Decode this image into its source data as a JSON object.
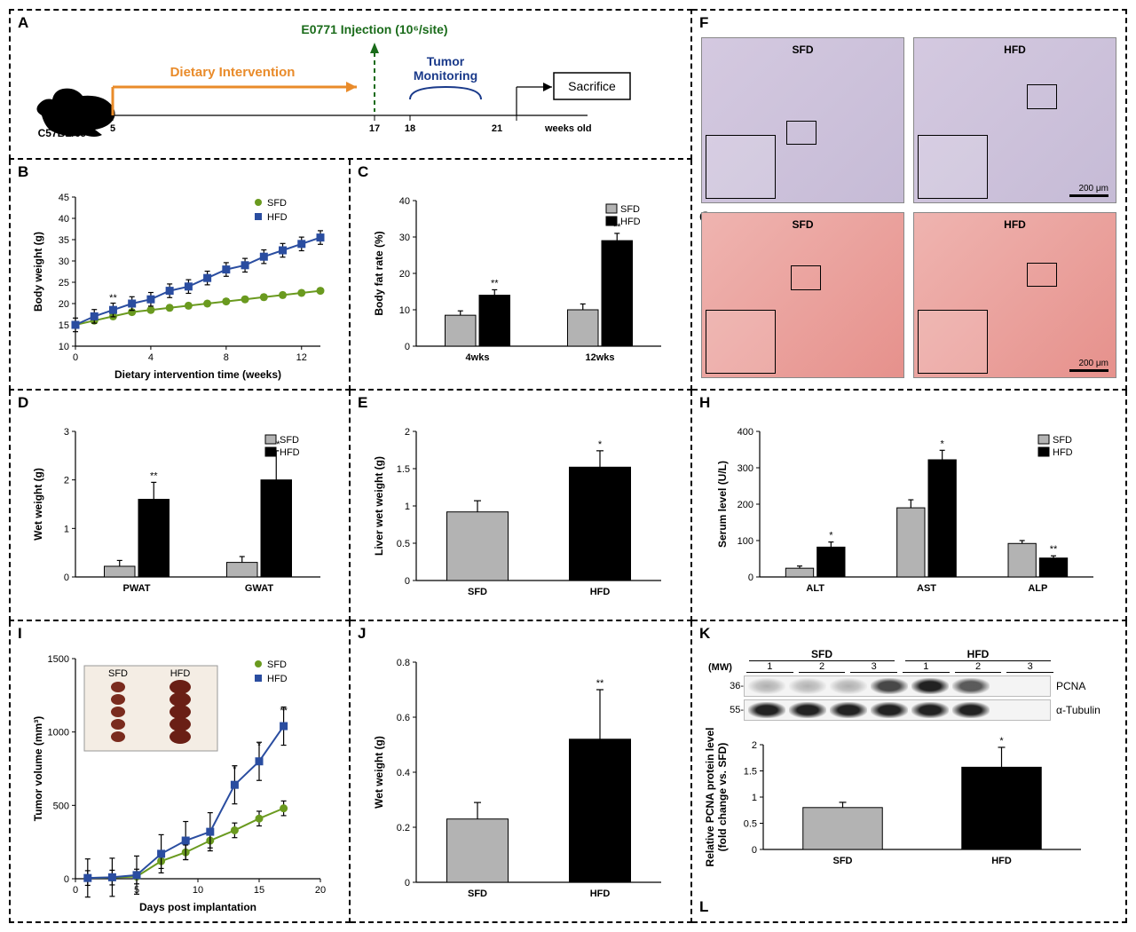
{
  "colors": {
    "sfd_line": "#6a9a1f",
    "hfd_line": "#2a4da0",
    "sfd_bar": "#b3b3b3",
    "hfd_bar": "#000000",
    "diet_arrow": "#e98b2a",
    "injection": "#1a6b1a",
    "monitor": "#1a3a8a"
  },
  "panelA": {
    "label": "A",
    "mouse_label": "C57BL/6J",
    "diet_label": "Dietary Intervention",
    "injection_label": "E0771 Injection (10⁶/site)",
    "monitor_label": "Tumor\nMonitoring",
    "sacrifice_label": "Sacrifice",
    "weeks": [
      5,
      17,
      18,
      21
    ],
    "weeks_suffix": "weeks old"
  },
  "panelB": {
    "label": "B",
    "type": "line",
    "xlabel": "Dietary intervention time (weeks)",
    "ylabel": "Body weight (g)",
    "xlim": [
      0,
      13
    ],
    "ylim": [
      10,
      45
    ],
    "xticks": [
      0,
      4,
      8,
      12
    ],
    "yticks": [
      10,
      15,
      20,
      25,
      30,
      35,
      40,
      45
    ],
    "sfd": [
      15,
      16,
      17,
      18,
      18.5,
      19,
      19.5,
      20,
      20.5,
      21,
      21.5,
      22,
      22.5,
      23
    ],
    "hfd": [
      15,
      17,
      18.5,
      20,
      21,
      23,
      24,
      26,
      28,
      29,
      31,
      32.5,
      34,
      35.5
    ],
    "err_sfd": 0.6,
    "err_hfd": 1.6,
    "sig": {
      "x": 2,
      "txt": "**"
    },
    "legend": [
      "SFD",
      "HFD"
    ]
  },
  "panelC": {
    "label": "C",
    "type": "grouped-bar",
    "xlabel": "",
    "ylabel": "Body fat rate (%)",
    "ylim": [
      0,
      40
    ],
    "yticks": [
      0,
      10,
      20,
      30,
      40
    ],
    "groups": [
      "4wks",
      "12wks"
    ],
    "sfd": [
      8.5,
      10
    ],
    "hfd": [
      14,
      29
    ],
    "err_sfd": [
      1.2,
      1.6
    ],
    "err_hfd": [
      1.5,
      2.0
    ],
    "sig": [
      "**",
      "**"
    ],
    "legend": [
      "SFD",
      "HFD"
    ]
  },
  "panelD": {
    "label": "D",
    "type": "grouped-bar",
    "ylabel": "Wet weight (g)",
    "ylim": [
      0,
      3
    ],
    "yticks": [
      0,
      1,
      2,
      3
    ],
    "groups": [
      "PWAT",
      "GWAT"
    ],
    "sfd": [
      0.22,
      0.3
    ],
    "hfd": [
      1.6,
      2.0
    ],
    "err_sfd": [
      0.12,
      0.12
    ],
    "err_hfd": [
      0.35,
      0.6
    ],
    "sig": [
      "**",
      "**"
    ],
    "legend": [
      "SFD",
      "HFD"
    ]
  },
  "panelE": {
    "label": "E",
    "type": "bar",
    "ylabel": "Liver wet weight (g)",
    "ylim": [
      0,
      2.0
    ],
    "yticks": [
      0.0,
      0.5,
      1.0,
      1.5,
      2.0
    ],
    "cats": [
      "SFD",
      "HFD"
    ],
    "vals": [
      0.92,
      1.52
    ],
    "errs": [
      0.15,
      0.22
    ],
    "sig": [
      "",
      "*"
    ],
    "bar_colors": [
      "#b3b3b3",
      "#000000"
    ]
  },
  "panelF": {
    "label": "F",
    "rows": [
      {
        "stain": "purple",
        "sfd_label": "SFD",
        "hfd_label": "HFD",
        "scale": "200 μm"
      },
      {
        "stain": "red",
        "sfd_label": "SFD",
        "hfd_label": "HFD",
        "scale": "200 μm",
        "sublabel": "G"
      }
    ]
  },
  "panelH": {
    "label": "H",
    "type": "grouped-bar",
    "ylabel": "Serum level (U/L)",
    "ylim": [
      0,
      400
    ],
    "yticks": [
      0,
      100,
      200,
      300,
      400
    ],
    "groups": [
      "ALT",
      "AST",
      "ALP"
    ],
    "sfd": [
      24,
      190,
      92
    ],
    "hfd": [
      82,
      322,
      52
    ],
    "err_sfd": [
      6,
      22,
      8
    ],
    "err_hfd": [
      14,
      26,
      6
    ],
    "sig": [
      "*",
      "*",
      "**"
    ],
    "legend": [
      "SFD",
      "HFD"
    ]
  },
  "panelI": {
    "label": "I",
    "type": "line",
    "xlabel": "Days post implantation",
    "ylabel": "Tumor volume (mm³)",
    "xlim": [
      0,
      20
    ],
    "ylim": [
      0,
      1500
    ],
    "xticks": [
      0,
      5,
      10,
      15,
      20
    ],
    "yticks": [
      0,
      500,
      1000,
      1500
    ],
    "days": [
      1,
      3,
      5,
      7,
      9,
      11,
      13,
      15,
      17
    ],
    "sfd": [
      5,
      8,
      15,
      120,
      180,
      260,
      330,
      410,
      480
    ],
    "hfd": [
      5,
      10,
      25,
      170,
      260,
      320,
      640,
      800,
      1040
    ],
    "err_sfd": 50,
    "err_hfd": 130,
    "sig": [
      {
        "x": 13,
        "t": "*"
      },
      {
        "x": 15,
        "t": "*"
      },
      {
        "x": 17,
        "t": "**"
      }
    ],
    "legend": [
      "SFD",
      "HFD"
    ],
    "inset_labels": [
      "SFD",
      "HFD"
    ]
  },
  "panelJ": {
    "label": "J",
    "type": "bar",
    "ylabel": "Wet weight (g)",
    "ylim": [
      0,
      0.8
    ],
    "yticks": [
      0.0,
      0.2,
      0.4,
      0.6,
      0.8
    ],
    "cats": [
      "SFD",
      "HFD"
    ],
    "vals": [
      0.23,
      0.52
    ],
    "errs": [
      0.06,
      0.18
    ],
    "sig": [
      "",
      "**"
    ],
    "bar_colors": [
      "#b3b3b3",
      "#000000"
    ]
  },
  "panelK": {
    "label": "K",
    "header_groups": [
      "SFD",
      "HFD"
    ],
    "lanes": [
      "1",
      "2",
      "3",
      "1",
      "2",
      "3"
    ],
    "mw_label": "(MW)",
    "rows": [
      {
        "mw": "36-",
        "name": "PCNA",
        "intensity": [
          0.4,
          0.35,
          0.4,
          0.7,
          1.0,
          0.55
        ]
      },
      {
        "mw": "55-",
        "name": "α-Tubulin",
        "intensity": [
          1,
          1,
          1,
          1,
          1,
          1
        ]
      }
    ],
    "panelL": {
      "label": "L",
      "ylabel": "Relative PCNA protein level\n(fold change vs. SFD)",
      "ylim": [
        0,
        2.0
      ],
      "yticks": [
        0.0,
        0.5,
        1.0,
        1.5,
        2.0
      ],
      "cats": [
        "SFD",
        "HFD"
      ],
      "vals": [
        0.8,
        1.57
      ],
      "errs": [
        0.1,
        0.38
      ],
      "sig": [
        "",
        "*"
      ],
      "bar_colors": [
        "#b3b3b3",
        "#000000"
      ]
    }
  }
}
